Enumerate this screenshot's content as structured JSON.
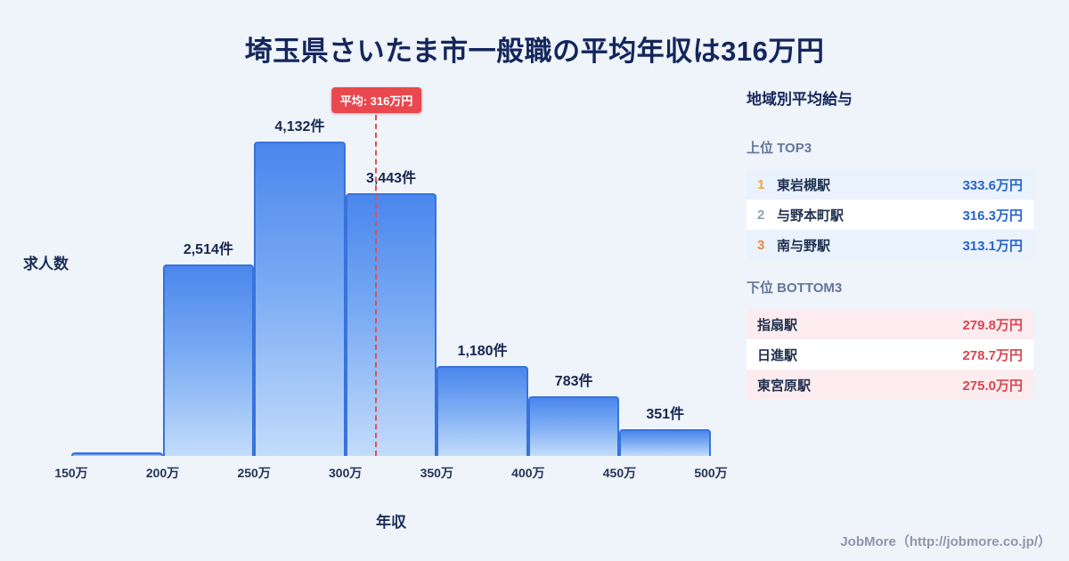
{
  "title": "埼玉県さいたま市一般職の平均年収は316万円",
  "chart_data": {
    "type": "bar",
    "title": "埼玉県さいたま市一般職の平均年収は316万円",
    "xlabel": "年収",
    "ylabel": "求人数",
    "x_domain": [
      150,
      500
    ],
    "x_ticks": [
      "150万",
      "200万",
      "250万",
      "300万",
      "350万",
      "400万",
      "450万",
      "500万"
    ],
    "ylim": [
      0,
      4500
    ],
    "grid": false,
    "legend": "none",
    "bins": [
      {
        "range": "150万-200万",
        "value": 50,
        "label": ""
      },
      {
        "range": "200万-250万",
        "value": 2514,
        "label": "2,514件"
      },
      {
        "range": "250万-300万",
        "value": 4132,
        "label": "4,132件"
      },
      {
        "range": "300万-350万",
        "value": 3443,
        "label": "3,443件"
      },
      {
        "range": "350万-400万",
        "value": 1180,
        "label": "1,180件"
      },
      {
        "range": "400万-450万",
        "value": 783,
        "label": "783件"
      },
      {
        "range": "450万-500万",
        "value": 351,
        "label": "351件"
      }
    ],
    "average_line": {
      "value": 316,
      "label": "平均: 316万円"
    }
  },
  "sidebar": {
    "title": "地域別平均給与",
    "top": {
      "heading": "上位 TOP3",
      "rows": [
        {
          "rank": "1",
          "name": "東岩槻駅",
          "value": "333.6万円"
        },
        {
          "rank": "2",
          "name": "与野本町駅",
          "value": "316.3万円"
        },
        {
          "rank": "3",
          "name": "南与野駅",
          "value": "313.1万円"
        }
      ]
    },
    "bottom": {
      "heading": "下位 BOTTOM3",
      "rows": [
        {
          "name": "指扇駅",
          "value": "279.8万円"
        },
        {
          "name": "日進駅",
          "value": "278.7万円"
        },
        {
          "name": "東宮原駅",
          "value": "275.0万円"
        }
      ]
    }
  },
  "footer": {
    "credit": "JobMore（http://jobmore.co.jp/）"
  },
  "colors": {
    "background": "#eff4fb",
    "title_navy": "#14265c",
    "bar_border": "#3873db",
    "bar_fill_top": "#4a86ec",
    "bar_fill_bottom": "#c3dcfb",
    "average_red": "#e8484e",
    "top_value_blue": "#2a64c8",
    "bottom_value_red": "#d84650",
    "rank1_gold": "#f2a43a",
    "rank2_gray": "#939eb0",
    "rank3_bronze": "#e6873d",
    "top_row_bg": "#e9f2fd",
    "bottom_row_bg": "#fdecef"
  }
}
